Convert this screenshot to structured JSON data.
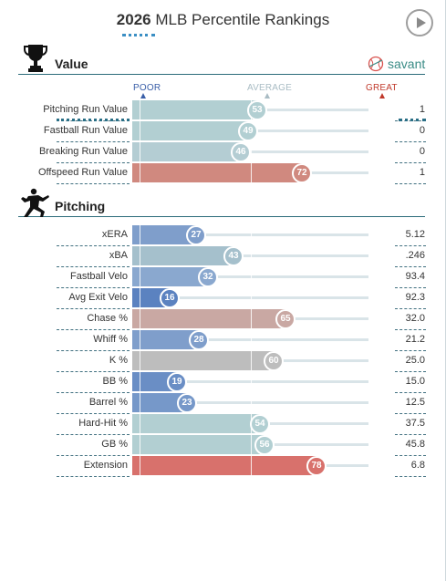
{
  "header": {
    "year": "2026",
    "title": "MLB Percentile Rankings"
  },
  "savant": {
    "label": "savant"
  },
  "scale": {
    "poor": "POOR",
    "average": "AVERAGE",
    "great": "GREAT"
  },
  "colors": {
    "poor_blue_dark": "#325aa8",
    "great_red": "#d8716c",
    "neutral_teal": "#b2cfd2",
    "neutral_gray": "#bdbdbd",
    "muted_red": "#c9a8a3",
    "accent_teal": "#3a8c86"
  },
  "sections": [
    {
      "title": "Value",
      "icon": "trophy-icon",
      "rows": [
        {
          "label": "Pitching Run Value",
          "percentile": 53,
          "value": "1",
          "color": "#b2cfd2"
        },
        {
          "label": "Fastball Run Value",
          "percentile": 49,
          "value": "0",
          "color": "#b2cfd2"
        },
        {
          "label": "Breaking Run Value",
          "percentile": 46,
          "value": "0",
          "color": "#b4cdd3"
        },
        {
          "label": "Offspeed Run Value",
          "percentile": 72,
          "value": "1",
          "color": "#d0897f"
        }
      ]
    },
    {
      "title": "Pitching",
      "icon": "pitcher-icon",
      "rows": [
        {
          "label": "xERA",
          "percentile": 27,
          "value": "5.12",
          "color": "#7f9ecb"
        },
        {
          "label": "xBA",
          "percentile": 43,
          "value": ".246",
          "color": "#a5c0cc"
        },
        {
          "label": "Fastball Velo",
          "percentile": 32,
          "value": "93.4",
          "color": "#8aa8cf"
        },
        {
          "label": "Avg Exit Velo",
          "percentile": 16,
          "value": "92.3",
          "color": "#5b82c0"
        },
        {
          "label": "Chase %",
          "percentile": 65,
          "value": "32.0",
          "color": "#c9a8a3"
        },
        {
          "label": "Whiff %",
          "percentile": 28,
          "value": "21.2",
          "color": "#7f9ecb"
        },
        {
          "label": "K %",
          "percentile": 60,
          "value": "25.0",
          "color": "#bdbdbd"
        },
        {
          "label": "BB %",
          "percentile": 19,
          "value": "15.0",
          "color": "#6a8ec5"
        },
        {
          "label": "Barrel %",
          "percentile": 23,
          "value": "12.5",
          "color": "#7698c9"
        },
        {
          "label": "Hard-Hit %",
          "percentile": 54,
          "value": "37.5",
          "color": "#b2cfd2"
        },
        {
          "label": "GB %",
          "percentile": 56,
          "value": "45.8",
          "color": "#b2cfd2"
        },
        {
          "label": "Extension",
          "percentile": 78,
          "value": "6.8",
          "color": "#d8716c"
        }
      ]
    }
  ]
}
